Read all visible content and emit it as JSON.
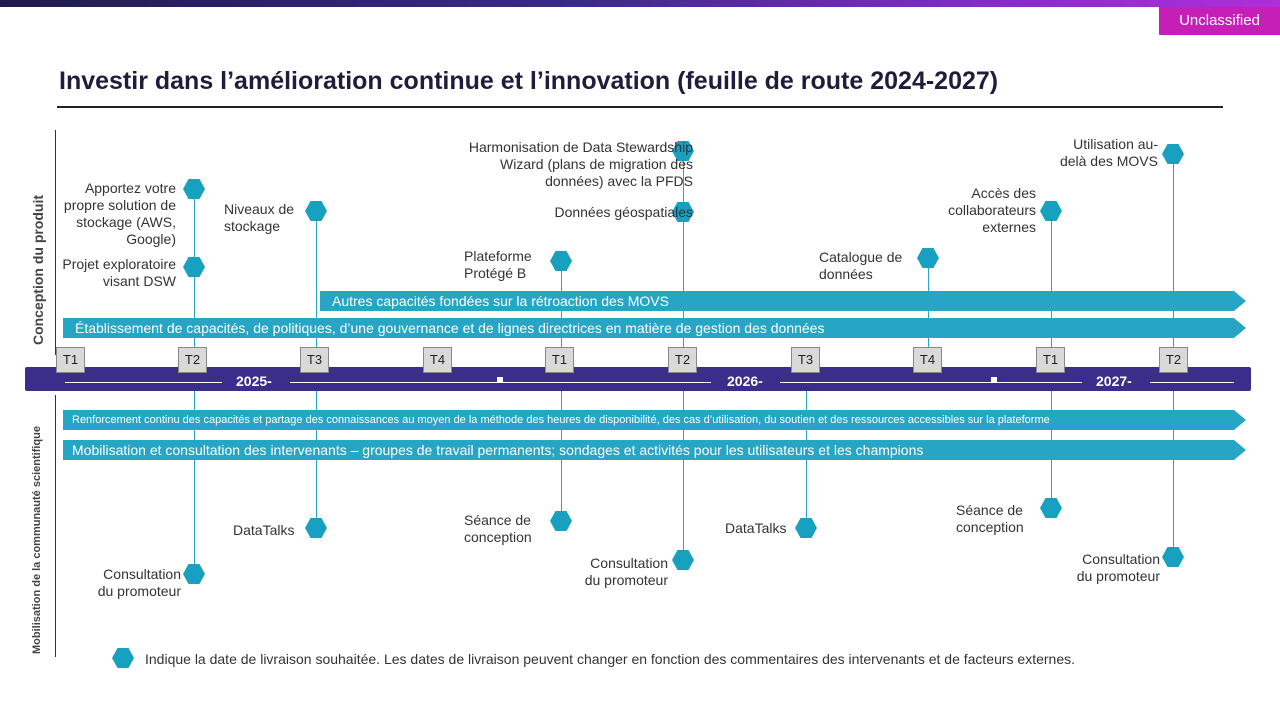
{
  "header": {
    "classification": "Unclassified",
    "title": "Investir dans l’amélioration continue et l’innovation (feuille de route 2024-2027)"
  },
  "sections": {
    "top": "Conception du produit",
    "bottom": "Mobilisation de la communauté scientifique"
  },
  "bars": {
    "movs": "Autres capacités fondées sur la rétroaction des MOVS",
    "gouvernance": "Établissement de capacités, de politiques, d’une gouvernance et de lignes directrices en matière de gestion des données",
    "renforcement": "Renforcement continu des capacités et partage des connaissances au moyen de la méthode des heures de disponibilité, des cas d’utilisation, du soutien et des ressources accessibles sur la plateforme",
    "mobilisation": "Mobilisation et consultation des intervenants – groupes de travail permanents; sondages et activités pour les utilisateurs et les champions"
  },
  "timeline": {
    "quarters": [
      "T1",
      "T2",
      "T3",
      "T4",
      "T1",
      "T2",
      "T3",
      "T4",
      "T1",
      "T2"
    ],
    "years": [
      "2025-",
      "2026-",
      "2027-"
    ]
  },
  "milestones": {
    "byos": "Apportez votre\npropre solution de\nstockage (AWS,\nGoogle)",
    "dsw": "Projet exploratoire\nvisant DSW",
    "stockage": "Niveaux de\nstockage",
    "harmonisation": "Harmonisation de Data Stewardship\nWizard (plans de migration des\ndonnées) avec la PFDS",
    "geo": "Données géospatiales",
    "protege": "Plateforme\nProtégé B",
    "catalogue": "Catalogue de\ndonnées",
    "acces": "Accès des\ncollaborateurs\nexternes",
    "utilisation": "Utilisation au-\ndelà des MOVS",
    "datatalks1": "DataTalks",
    "consult1": "Consultation\ndu promoteur",
    "seance1": "Séance de\nconception",
    "consult2": "Consultation\ndu promoteur",
    "datatalks2": "DataTalks",
    "seance2": "Séance de\nconception",
    "consult3": "Consultation\ndu promoteur"
  },
  "legend": "Indique la date de livraison souhaitée.  Les dates de livraison peuvent changer en fonction des commentaires des intervenants et de facteurs externes.",
  "colors": {
    "timeline": "#3b2d8a",
    "bars": "#27a5c4",
    "hex": "#17a0c0",
    "classification": "#c61fb7"
  }
}
